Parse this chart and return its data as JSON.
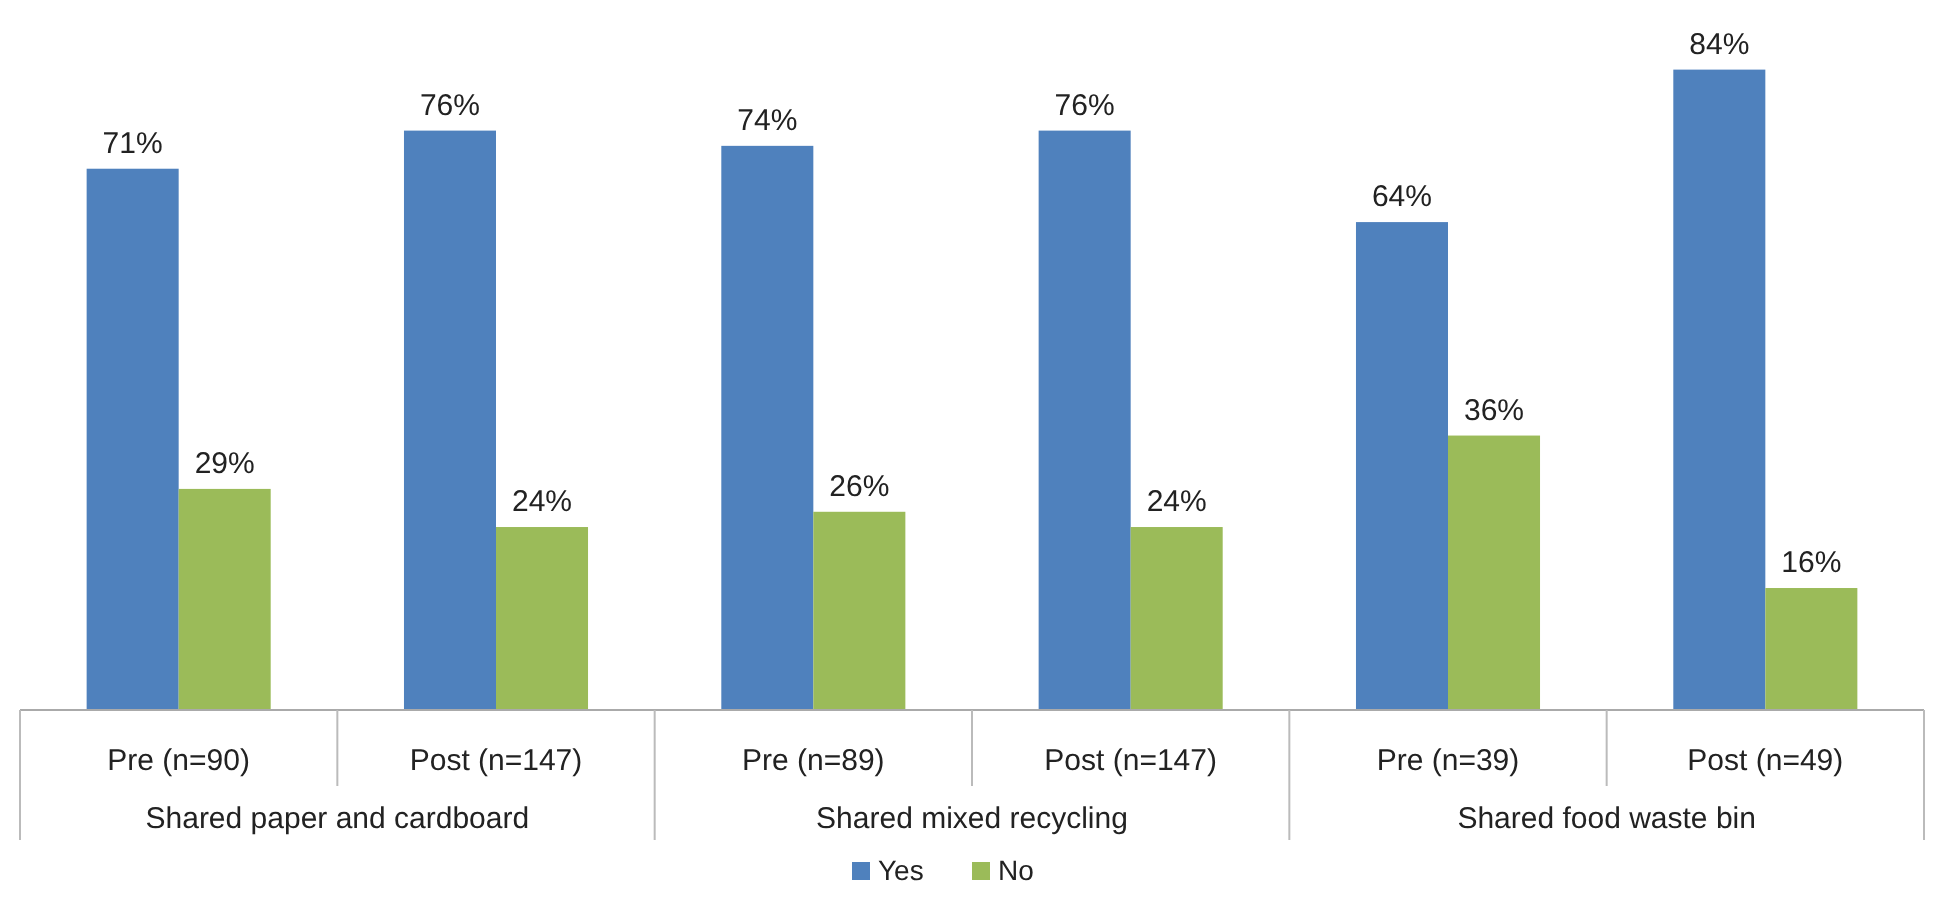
{
  "chart_data": {
    "type": "bar",
    "categories": [
      "Pre (n=90)",
      "Post (n=147)",
      "Pre (n=89)",
      "Post (n=147)",
      "Pre (n=39)",
      "Post (n=49)"
    ],
    "series": [
      {
        "name": "Yes",
        "color": "#4f81bd",
        "values": [
          71,
          76,
          74,
          76,
          64,
          84
        ],
        "value_labels": [
          "71%",
          "76%",
          "74%",
          "76%",
          "64%",
          "84%"
        ]
      },
      {
        "name": "No",
        "color": "#9bbb59",
        "values": [
          29,
          24,
          26,
          24,
          36,
          16
        ],
        "value_labels": [
          "29%",
          "24%",
          "26%",
          "24%",
          "36%",
          "16%"
        ]
      }
    ],
    "annotations": [
      "Shared paper and cardboard",
      "Shared mixed recycling",
      "Shared food waste bin"
    ],
    "tick_labels": "x",
    "legend": "bottom"
  }
}
